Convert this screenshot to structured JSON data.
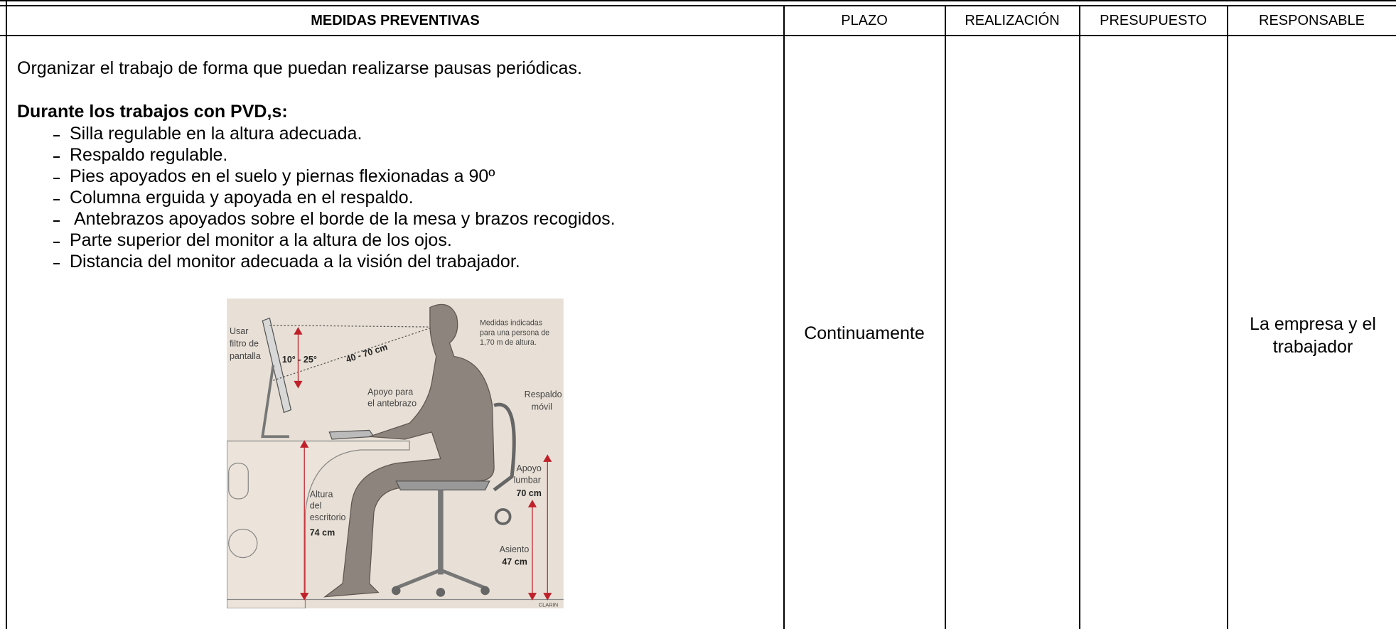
{
  "table": {
    "headers": [
      "MEDIDAS PREVENTIVAS",
      "PLAZO",
      "REALIZACIÓN",
      "PRESUPUESTO",
      "RESPONSABLE"
    ],
    "measures": {
      "intro": "Organizar el trabajo de forma que puedan realizarse pausas periódicas.",
      "subheading": "Durante los trabajos con PVD,s:",
      "items": [
        "Silla regulable en la altura adecuada.",
        "Respaldo regulable.",
        "Pies apoyados en el suelo y piernas flexionadas a 90º",
        "Columna erguida y apoyada en el respaldo.",
        "Antebrazos apoyados sobre el borde de la mesa y brazos recogidos.",
        "Parte superior del monitor a la altura de los ojos.",
        "Distancia del monitor adecuada a la visión del trabajador."
      ]
    },
    "plazo": "Continuamente",
    "responsable": "La empresa y el trabajador"
  },
  "figure": {
    "labels": [
      "Usar",
      "filtro de",
      "pantalla",
      "10° - 25°",
      "40 - 70 cm",
      "Medidas indicadas",
      "para una persona de",
      "1,70 m de altura.",
      "Apoyo para",
      "el antebrazo",
      "Respaldo",
      "móvil",
      "Apoyo",
      "lumbar",
      "70 cm",
      "Altura",
      "del",
      "escritorio",
      "74 cm",
      "Asiento",
      "47 cm",
      "CLARIN"
    ]
  }
}
